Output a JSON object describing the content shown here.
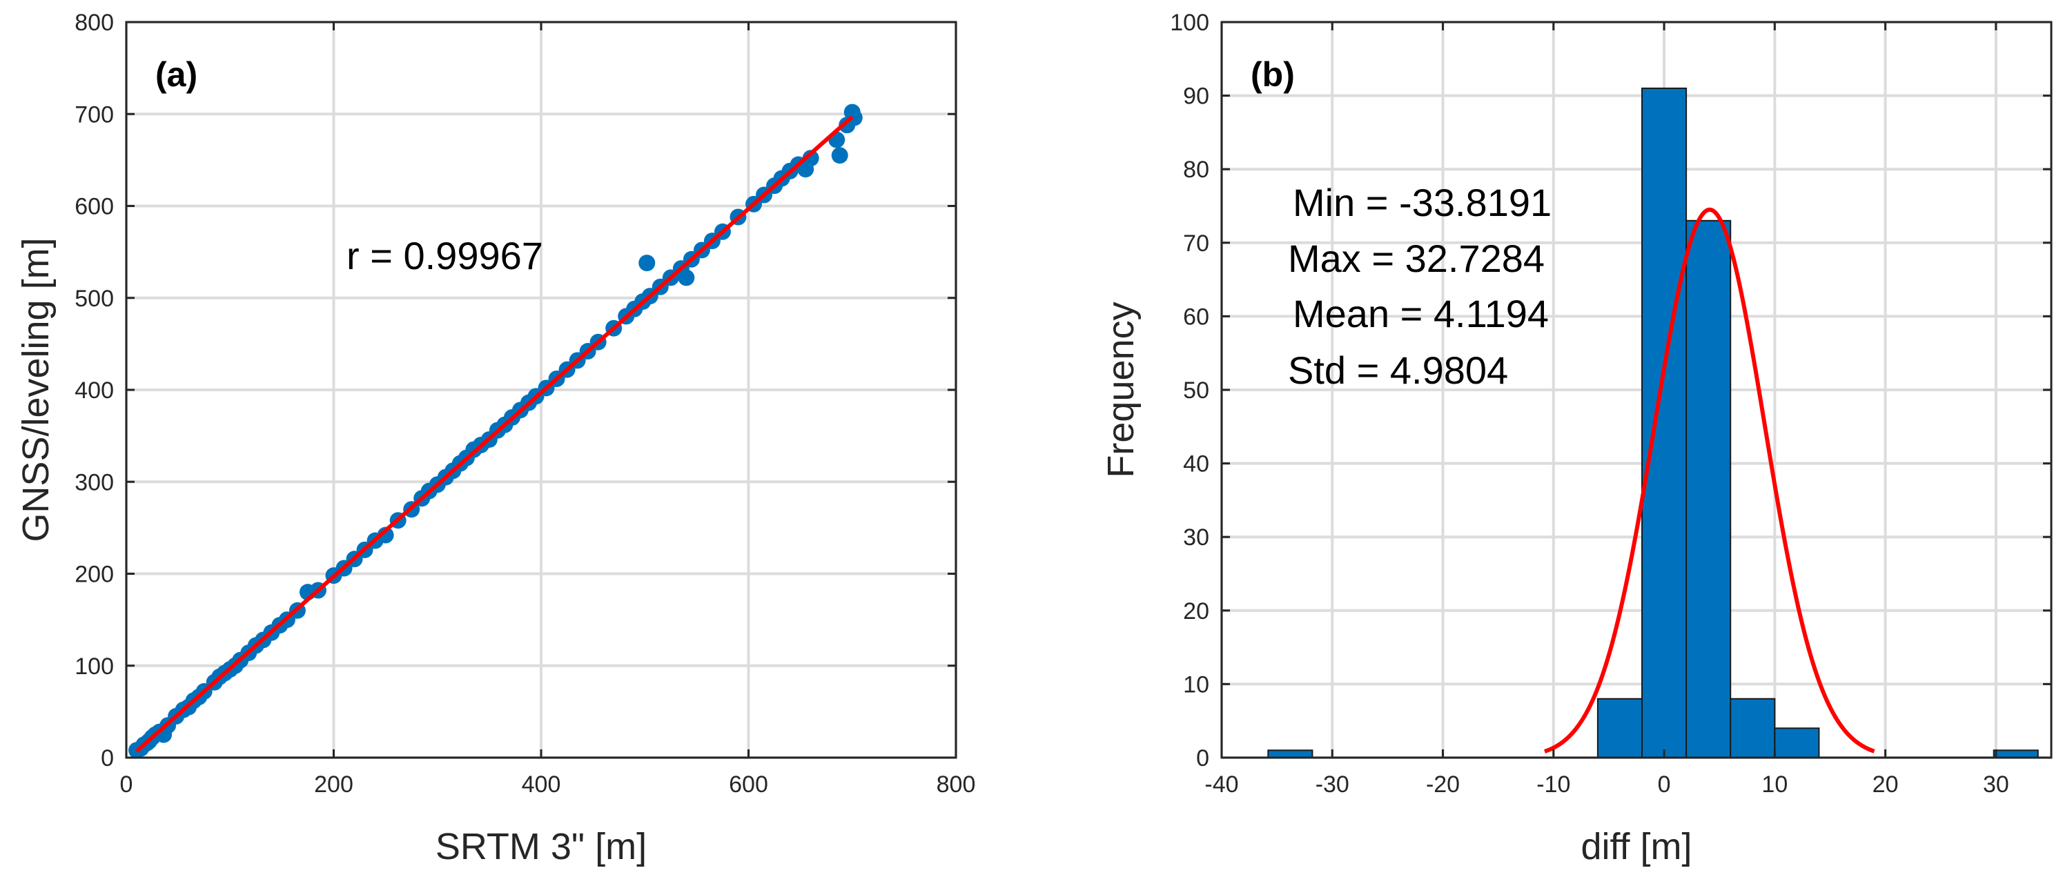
{
  "chart_data": [
    {
      "type": "scatter",
      "panel_label": "(a)",
      "xlabel": "SRTM 3\" [m]",
      "ylabel": "GNSS/leveling [m]",
      "xlim": [
        0,
        800
      ],
      "ylim": [
        0,
        800
      ],
      "xticks": [
        0,
        200,
        400,
        600,
        800
      ],
      "yticks": [
        0,
        100,
        200,
        300,
        400,
        500,
        600,
        700,
        800
      ],
      "xtick_labels": [
        "0",
        "200",
        "400",
        "600",
        "800"
      ],
      "ytick_labels": [
        "0",
        "100",
        "200",
        "300",
        "400",
        "500",
        "600",
        "700",
        "800"
      ],
      "grid": true,
      "annotation": "r = 0.99967",
      "fit_line": {
        "x": [
          10,
          700
        ],
        "y": [
          7,
          697
        ],
        "color": "#ff0000"
      },
      "series": [
        {
          "name": "points",
          "color": "#0072bd",
          "points": [
            [
              10,
              8
            ],
            [
              14,
              10
            ],
            [
              17,
              14
            ],
            [
              20,
              16
            ],
            [
              22,
              18
            ],
            [
              25,
              22
            ],
            [
              28,
              25
            ],
            [
              32,
              28
            ],
            [
              36,
              25
            ],
            [
              40,
              35
            ],
            [
              48,
              45
            ],
            [
              55,
              52
            ],
            [
              60,
              55
            ],
            [
              65,
              62
            ],
            [
              70,
              66
            ],
            [
              75,
              72
            ],
            [
              85,
              82
            ],
            [
              90,
              88
            ],
            [
              95,
              92
            ],
            [
              100,
              96
            ],
            [
              105,
              100
            ],
            [
              110,
              106
            ],
            [
              118,
              114
            ],
            [
              125,
              122
            ],
            [
              132,
              128
            ],
            [
              140,
              136
            ],
            [
              148,
              144
            ],
            [
              155,
              150
            ],
            [
              165,
              160
            ],
            [
              175,
              180
            ],
            [
              185,
              182
            ],
            [
              200,
              198
            ],
            [
              210,
              206
            ],
            [
              220,
              216
            ],
            [
              230,
              226
            ],
            [
              240,
              236
            ],
            [
              250,
              242
            ],
            [
              262,
              258
            ],
            [
              275,
              270
            ],
            [
              285,
              282
            ],
            [
              292,
              290
            ],
            [
              300,
              297
            ],
            [
              308,
              305
            ],
            [
              315,
              312
            ],
            [
              322,
              320
            ],
            [
              328,
              326
            ],
            [
              335,
              335
            ],
            [
              342,
              340
            ],
            [
              350,
              346
            ],
            [
              358,
              356
            ],
            [
              365,
              362
            ],
            [
              372,
              370
            ],
            [
              380,
              378
            ],
            [
              388,
              386
            ],
            [
              395,
              393
            ],
            [
              405,
              402
            ],
            [
              415,
              412
            ],
            [
              425,
              422
            ],
            [
              435,
              432
            ],
            [
              445,
              442
            ],
            [
              455,
              452
            ],
            [
              470,
              467
            ],
            [
              482,
              480
            ],
            [
              490,
              488
            ],
            [
              498,
              496
            ],
            [
              502,
              538
            ],
            [
              505,
              502
            ],
            [
              515,
              512
            ],
            [
              525,
              522
            ],
            [
              535,
              532
            ],
            [
              540,
              522
            ],
            [
              545,
              542
            ],
            [
              555,
              552
            ],
            [
              565,
              562
            ],
            [
              575,
              572
            ],
            [
              590,
              588
            ],
            [
              605,
              602
            ],
            [
              615,
              612
            ],
            [
              625,
              622
            ],
            [
              632,
              630
            ],
            [
              640,
              638
            ],
            [
              648,
              645
            ],
            [
              655,
              640
            ],
            [
              660,
              652
            ],
            [
              685,
              672
            ],
            [
              688,
              655
            ],
            [
              695,
              688
            ],
            [
              700,
              702
            ],
            [
              702,
              696
            ]
          ]
        }
      ]
    },
    {
      "type": "bar",
      "subtype": "histogram",
      "panel_label": "(b)",
      "xlabel": "diff [m]",
      "ylabel": "Frequency",
      "xlim": [
        -40,
        35
      ],
      "ylim": [
        0,
        100
      ],
      "xticks": [
        -40,
        -30,
        -20,
        -10,
        0,
        10,
        20,
        30
      ],
      "yticks": [
        0,
        10,
        20,
        30,
        40,
        50,
        60,
        70,
        80,
        90,
        100
      ],
      "xtick_labels": [
        "-40",
        "-30",
        "-20",
        "-10",
        "0",
        "10",
        "20",
        "30"
      ],
      "ytick_labels": [
        "0",
        "10",
        "20",
        "30",
        "40",
        "50",
        "60",
        "70",
        "80",
        "90",
        "100"
      ],
      "grid": true,
      "bin_edges": [
        -35.8,
        -31.8,
        -27.8,
        -23.8,
        -19.8,
        -15.8,
        -11.8,
        -7.8,
        -3.8,
        0.2,
        4.2,
        8.2,
        12.2,
        16.2,
        20.2,
        24.2,
        28.2,
        32.2
      ],
      "bars": [
        {
          "x0": -35.8,
          "x1": -31.8,
          "value": 1
        },
        {
          "x0": -6.0,
          "x1": -2.0,
          "value": 8
        },
        {
          "x0": -2.0,
          "x1": 2.0,
          "value": 91
        },
        {
          "x0": 2.0,
          "x1": 6.0,
          "value": 73
        },
        {
          "x0": 6.0,
          "x1": 10.0,
          "value": 8
        },
        {
          "x0": 10.0,
          "x1": 14.0,
          "value": 4
        },
        {
          "x0": 29.8,
          "x1": 33.8,
          "value": 1
        }
      ],
      "bar_color": "#0072bd",
      "fit_curve": {
        "type": "normal",
        "mean": 4.1194,
        "std": 4.9804,
        "x_range": [
          -10.8,
          19
        ],
        "peak": 74.5,
        "color": "#ff0000"
      },
      "stats": [
        "Min = -33.8191",
        "Max = 32.7284",
        "Mean = 4.1194",
        "Std = 4.9804"
      ]
    }
  ]
}
